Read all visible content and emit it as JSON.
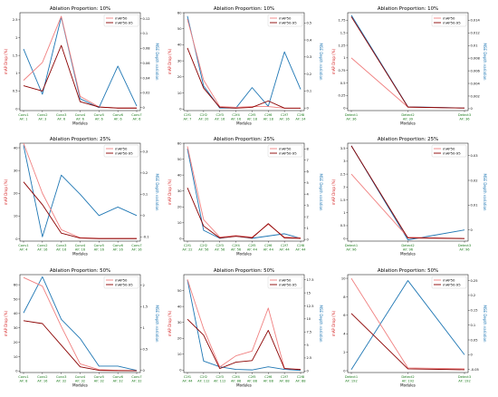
{
  "figure": {
    "background": "#ffffff"
  },
  "colors": {
    "map50": "#f08080",
    "map50_95": "#8b0000",
    "mse": "#1f77b4",
    "xtick": "#1a7a1a",
    "left_axis": "#d62728",
    "right_axis": "#1f77b4"
  },
  "chart_data": [
    {
      "type": "line",
      "title": "Ablation Proportion: 10%",
      "xlabel": "Modules",
      "ylabel": "mAP Drop (%)",
      "ylabel_right": "MSE Depth variation",
      "categories": [
        [
          "Conv1",
          "AF: 1"
        ],
        [
          "Conv2",
          "AF: 3"
        ],
        [
          "Conv3",
          "AF: 6"
        ],
        [
          "Conv4",
          "AF: 6"
        ],
        [
          "Conv5",
          "AF: 6"
        ],
        [
          "Conv6",
          "AF: 6"
        ],
        [
          "Conv7",
          "AF: 6"
        ]
      ],
      "ylim": [
        -0.05,
        2.7
      ],
      "yticks": [
        0.0,
        0.5,
        1.0,
        1.5,
        2.0,
        2.5
      ],
      "ylim_right": [
        -0.004,
        0.128
      ],
      "yticks_right": [
        0.0,
        0.02,
        0.04,
        0.06,
        0.08,
        0.1,
        0.12
      ],
      "series": [
        {
          "name": "mAP50",
          "axis": "left",
          "color_key": "map50",
          "values": [
            0.8,
            1.3,
            2.6,
            0.35,
            0.05,
            0.02,
            0.02
          ]
        },
        {
          "name": "mAP50-95",
          "axis": "left",
          "color_key": "map50_95",
          "values": [
            0.65,
            0.5,
            1.78,
            0.2,
            0.05,
            0.02,
            0.02
          ]
        },
        {
          "axis": "right",
          "color_key": "mse",
          "values": [
            0.079,
            0.018,
            0.122,
            0.012,
            0.0,
            0.056,
            0.002
          ]
        }
      ],
      "legend": "top-right"
    },
    {
      "type": "line",
      "title": "Ablation Proportion: 10%",
      "xlabel": "Modules",
      "ylabel": "mAP Drop (%)",
      "ylabel_right": "MSE Depth variation",
      "categories": [
        [
          "C2f1",
          "AF: 7"
        ],
        [
          "C2f2",
          "AF: 20"
        ],
        [
          "C2f3",
          "AF: 16"
        ],
        [
          "C2f4",
          "AF: 16"
        ],
        [
          "C2f5",
          "AF: 18"
        ],
        [
          "C2f6",
          "AF: 18"
        ],
        [
          "C2f7",
          "AF: 16"
        ],
        [
          "C2f8",
          "AF: 24"
        ]
      ],
      "ylim": [
        -1,
        60
      ],
      "yticks": [
        0,
        10,
        20,
        30,
        40,
        50,
        60
      ],
      "ylim_right": [
        -0.015,
        0.56
      ],
      "yticks_right": [
        0.0,
        0.1,
        0.2,
        0.3,
        0.4,
        0.5
      ],
      "series": [
        {
          "name": "mAP50",
          "axis": "left",
          "color_key": "map50",
          "values": [
            56,
            18,
            1.5,
            1,
            1.5,
            1.5,
            0.5,
            0.5
          ]
        },
        {
          "name": "mAP50-95",
          "axis": "left",
          "color_key": "map50_95",
          "values": [
            38,
            13,
            1,
            0.5,
            1,
            5,
            0.5,
            0.5
          ]
        },
        {
          "axis": "right",
          "color_key": "mse",
          "values": [
            0.54,
            0.13,
            0.0,
            0.0,
            0.12,
            0.01,
            0.33,
            0.11
          ]
        }
      ],
      "legend": "top-right"
    },
    {
      "type": "line",
      "title": "Ablation Proportion: 10%",
      "xlabel": "Modules",
      "ylabel": "mAP Drop (%)",
      "ylabel_right": "MSE Depth variation",
      "categories": [
        [
          "Detect1",
          "AF: 36"
        ],
        [
          "Detect2",
          "AF: 39"
        ],
        [
          "Detect3",
          "AF: 36"
        ]
      ],
      "ylim": [
        -0.05,
        1.9
      ],
      "yticks": [
        0.0,
        0.25,
        0.5,
        0.75,
        1.0,
        1.25,
        1.5,
        1.75
      ],
      "ylim_right": [
        -0.0003,
        0.0152
      ],
      "yticks_right": [
        0.0,
        0.002,
        0.004,
        0.006,
        0.008,
        0.01,
        0.012,
        0.014
      ],
      "series": [
        {
          "name": "mAP50",
          "axis": "left",
          "color_key": "map50",
          "values": [
            1.0,
            0.02,
            0.0
          ]
        },
        {
          "name": "mAP50-95",
          "axis": "left",
          "color_key": "map50_95",
          "values": [
            1.82,
            0.02,
            0.0
          ]
        },
        {
          "axis": "right",
          "color_key": "mse",
          "values": [
            0.0148,
            0.0003,
            0.0001
          ]
        }
      ],
      "legend": "top-right"
    },
    {
      "type": "line",
      "title": "Ablation Proportion: 25%",
      "xlabel": "Modules",
      "ylabel": "mAP Drop (%)",
      "ylabel_right": "MSE Depth variation",
      "categories": [
        [
          "Conv1",
          "AF: 4"
        ],
        [
          "Conv2",
          "AF: 16"
        ],
        [
          "Conv3",
          "AF: 16"
        ],
        [
          "Conv4",
          "AF: 16"
        ],
        [
          "Conv5",
          "AF: 16"
        ],
        [
          "Conv6",
          "AF: 16"
        ],
        [
          "Conv7",
          "AF: 16"
        ]
      ],
      "ylim": [
        -1,
        42
      ],
      "yticks": [
        0,
        10,
        20,
        30,
        40
      ],
      "ylim_right": [
        -0.12,
        0.34
      ],
      "yticks_right": [
        -0.1,
        0.0,
        0.1,
        0.2,
        0.3
      ],
      "series": [
        {
          "name": "mAP50",
          "axis": "left",
          "color_key": "map50",
          "values": [
            42,
            20,
            4,
            0.5,
            0.2,
            0.2,
            0.2
          ]
        },
        {
          "name": "mAP50-95",
          "axis": "left",
          "color_key": "map50_95",
          "values": [
            25,
            15,
            2.5,
            0.3,
            0.1,
            0.1,
            0.1
          ]
        },
        {
          "axis": "right",
          "color_key": "mse",
          "values": [
            0.33,
            -0.1,
            0.19,
            0.1,
            0.0,
            0.04,
            0.0
          ]
        }
      ],
      "legend": "top-right"
    },
    {
      "type": "line",
      "title": "Ablation Proportion: 25%",
      "xlabel": "Modules",
      "ylabel": "mAP Drop (%)",
      "ylabel_right": "MSE Depth variation",
      "categories": [
        [
          "C2f1",
          "AF: 22"
        ],
        [
          "C2f2",
          "AF: 56"
        ],
        [
          "C2f3",
          "AF: 56"
        ],
        [
          "C2f4",
          "AF: 56"
        ],
        [
          "C2f5",
          "AF: 44"
        ],
        [
          "C2f6",
          "AF: 44"
        ],
        [
          "C2f7",
          "AF: 44"
        ],
        [
          "C2f8",
          "AF: 44"
        ]
      ],
      "ylim": [
        -1.5,
        60
      ],
      "yticks": [
        0,
        10,
        20,
        30,
        40,
        50,
        60
      ],
      "ylim_right": [
        -0.15,
        8.5
      ],
      "yticks_right": [
        0,
        1,
        2,
        3,
        4,
        5,
        6,
        7,
        8
      ],
      "series": [
        {
          "name": "mAP50",
          "axis": "left",
          "color_key": "map50",
          "values": [
            58,
            12,
            1,
            2,
            1,
            9,
            1,
            0.5
          ]
        },
        {
          "name": "mAP50-95",
          "axis": "left",
          "color_key": "map50_95",
          "values": [
            32,
            8,
            0.5,
            1.5,
            0.5,
            9.5,
            0.5,
            0.2
          ]
        },
        {
          "axis": "right",
          "color_key": "mse",
          "values": [
            8.0,
            0.8,
            0.1,
            0.3,
            0.1,
            0.3,
            0.5,
            0.1
          ]
        }
      ],
      "legend": "top-right"
    },
    {
      "type": "line",
      "title": "Ablation Proportion: 25%",
      "xlabel": "Modules",
      "ylabel": "mAP Drop (%)",
      "ylabel_right": "MSE Depth variation",
      "categories": [
        [
          "Detect1",
          "AF: 96"
        ],
        [
          "Detect2",
          "AF: 96"
        ],
        [
          "Detect3",
          "AF: 96"
        ]
      ],
      "ylim": [
        -0.1,
        3.7
      ],
      "yticks": [
        0.0,
        0.5,
        1.0,
        1.5,
        2.0,
        2.5,
        3.0,
        3.5
      ],
      "ylim_right": [
        -0.0045,
        0.035
      ],
      "yticks_right": [
        0.0,
        0.01,
        0.02,
        0.03
      ],
      "series": [
        {
          "name": "mAP50",
          "axis": "left",
          "color_key": "map50",
          "values": [
            2.5,
            0.05,
            0.0
          ]
        },
        {
          "name": "mAP50-95",
          "axis": "left",
          "color_key": "map50_95",
          "values": [
            3.6,
            0.02,
            0.0
          ]
        },
        {
          "axis": "right",
          "color_key": "mse",
          "values": [
            0.034,
            -0.004,
            0.0
          ]
        }
      ],
      "legend": "top-right"
    },
    {
      "type": "line",
      "title": "Ablation Proportion: 50%",
      "xlabel": "Modules",
      "ylabel": "mAP Drop (%)",
      "ylabel_right": "MSE Depth variation",
      "categories": [
        [
          "Conv1",
          "AF: 8"
        ],
        [
          "Conv2",
          "AF: 16"
        ],
        [
          "Conv3",
          "AF: 32"
        ],
        [
          "Conv4",
          "AF: 32"
        ],
        [
          "Conv5",
          "AF: 32"
        ],
        [
          "Conv6",
          "AF: 32"
        ],
        [
          "Conv7",
          "AF: 32"
        ]
      ],
      "ylim": [
        -1,
        67
      ],
      "yticks": [
        0,
        10,
        20,
        30,
        40,
        50,
        60
      ],
      "ylim_right": [
        -0.05,
        2.25
      ],
      "yticks_right": [
        0.0,
        0.5,
        1.0,
        1.5,
        2.0
      ],
      "series": [
        {
          "name": "mAP50",
          "axis": "left",
          "color_key": "map50",
          "values": [
            65,
            59,
            31,
            5,
            1,
            0.5,
            0.3
          ]
        },
        {
          "name": "mAP50-95",
          "axis": "left",
          "color_key": "map50_95",
          "values": [
            35,
            33,
            18,
            3,
            0.5,
            0.3,
            0.2
          ]
        },
        {
          "axis": "right",
          "color_key": "mse",
          "values": [
            1.35,
            2.2,
            1.2,
            0.75,
            0.1,
            0.1,
            0.0
          ]
        }
      ],
      "legend": "top-right"
    },
    {
      "type": "line",
      "title": "Ablation Proportion: 50%",
      "xlabel": "Modules",
      "ylabel": "mAP Drop (%)",
      "ylabel_right": "MSE Depth variation",
      "categories": [
        [
          "C2f1",
          "AF: 44"
        ],
        [
          "C2f2",
          "AF: 112"
        ],
        [
          "C2f3",
          "AF: 112"
        ],
        [
          "C2f4",
          "AF: 88"
        ],
        [
          "C2f5",
          "AF: 88"
        ],
        [
          "C2f6",
          "AF: 88"
        ],
        [
          "C2f7",
          "AF: 88"
        ],
        [
          "C2f8",
          "AF: 88"
        ]
      ],
      "ylim": [
        -1.5,
        60
      ],
      "yticks": [
        0,
        10,
        20,
        30,
        40,
        50
      ],
      "ylim_right": [
        -0.3,
        18.5
      ],
      "yticks_right": [
        0.0,
        2.5,
        5.0,
        7.5,
        10.0,
        12.5,
        15.0,
        17.5
      ],
      "series": [
        {
          "name": "mAP50",
          "axis": "left",
          "color_key": "map50",
          "values": [
            57,
            26,
            2,
            9,
            12,
            39,
            1,
            0.5
          ]
        },
        {
          "name": "mAP50-95",
          "axis": "left",
          "color_key": "map50_95",
          "values": [
            32,
            22,
            1,
            5,
            6,
            25,
            1,
            0.3
          ]
        },
        {
          "axis": "right",
          "color_key": "mse",
          "values": [
            17.5,
            1.9,
            0.8,
            0.3,
            0.2,
            0.8,
            0.3,
            0.1
          ]
        }
      ],
      "legend": "top-right"
    },
    {
      "type": "line",
      "title": "Ablation Proportion: 50%",
      "xlabel": "Modules",
      "ylabel": "mAP Drop (%)",
      "ylabel_right": "MSE Depth variation",
      "categories": [
        [
          "Detect1",
          "AF: 192"
        ],
        [
          "Detect2",
          "AF: 192"
        ],
        [
          "Detect3",
          "AF: 192"
        ]
      ],
      "ylim": [
        -0.2,
        10.4
      ],
      "yticks": [
        0,
        2,
        4,
        6,
        8,
        10
      ],
      "ylim_right": [
        -0.06,
        0.27
      ],
      "yticks_right": [
        -0.05,
        0.0,
        0.05,
        0.1,
        0.15,
        0.2,
        0.25
      ],
      "series": [
        {
          "name": "mAP50",
          "axis": "left",
          "color_key": "map50",
          "values": [
            10,
            0.3,
            0.2
          ]
        },
        {
          "name": "mAP50-95",
          "axis": "left",
          "color_key": "map50_95",
          "values": [
            6.2,
            0.2,
            0.1
          ]
        },
        {
          "axis": "right",
          "color_key": "mse",
          "values": [
            -0.05,
            0.25,
            0.0
          ]
        }
      ],
      "legend": "top-right"
    }
  ]
}
